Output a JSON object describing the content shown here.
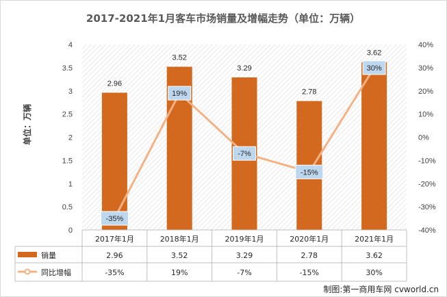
{
  "chart_data": {
    "type": "bar+line",
    "title": "2017-2021年1月客车市场销量及增幅走势（单位：万辆）",
    "ylabel": "单位：万辆",
    "categories": [
      "2017年1月",
      "2018年1月",
      "2019年1月",
      "2020年1月",
      "2021年1月"
    ],
    "series": [
      {
        "name": "销量",
        "type": "bar",
        "axis": "left",
        "values": [
          2.96,
          3.52,
          3.29,
          2.78,
          3.62
        ],
        "labels": [
          "2.96",
          "3.52",
          "3.29",
          "2.78",
          "3.62"
        ]
      },
      {
        "name": "同比增幅",
        "type": "line",
        "axis": "right",
        "values": [
          -35,
          19,
          -7,
          -15,
          30
        ],
        "labels": [
          "-35%",
          "19%",
          "-7%",
          "-15%",
          "30%"
        ]
      }
    ],
    "ylim": [
      0,
      4
    ],
    "y_ticks": [
      "0",
      "0.5",
      "1",
      "1.5",
      "2",
      "2.5",
      "3",
      "3.5",
      "4"
    ],
    "y2lim": [
      -40,
      40
    ],
    "y2_ticks": [
      "-40%",
      "-30%",
      "-20%",
      "-10%",
      "0%",
      "10%",
      "20%",
      "30%",
      "40%"
    ],
    "colors": {
      "bar": "#D2691E",
      "line": "#F4B183",
      "label_box": "#BDD7EE"
    },
    "grid": false,
    "legend": "data-table"
  },
  "source": "制图:第一商用车网 cvworld.cn"
}
